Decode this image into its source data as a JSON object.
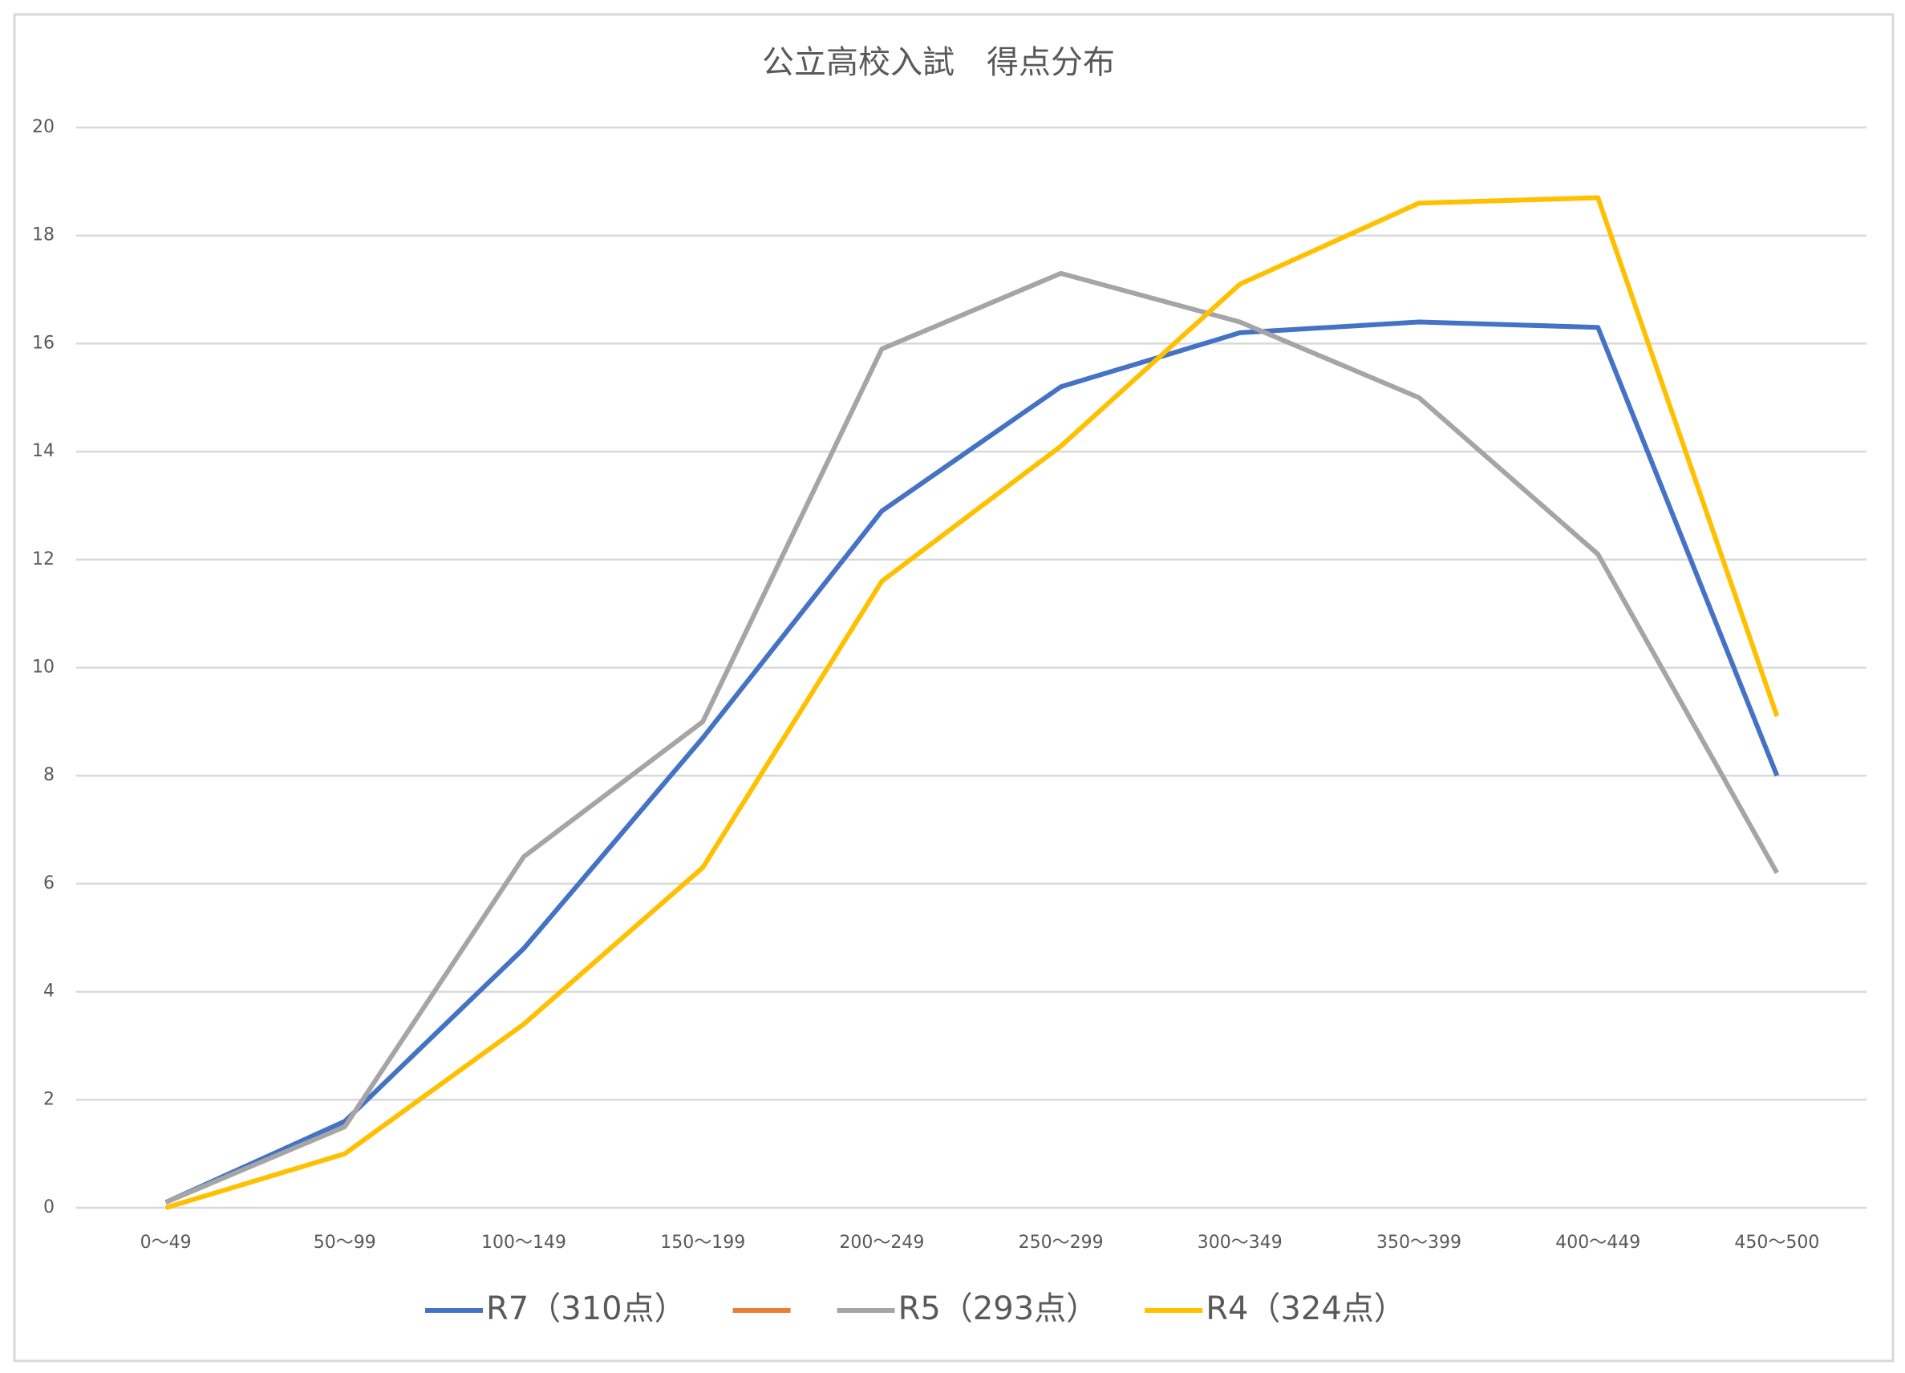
{
  "chart_data": {
    "type": "line",
    "title": "公立高校入試　得点分布",
    "categories": [
      "0〜49",
      "50〜99",
      "100〜149",
      "150〜199",
      "200〜249",
      "250〜299",
      "300〜349",
      "350〜399",
      "400〜449",
      "450〜500"
    ],
    "series": [
      {
        "name": "R7（310点）",
        "color": "#4472c4",
        "values": [
          0.1,
          1.6,
          4.8,
          8.7,
          12.9,
          15.2,
          16.2,
          16.4,
          16.3,
          8.0
        ]
      },
      {
        "color": "#ed7d31",
        "values": [
          null,
          null,
          null,
          null,
          null,
          null,
          null,
          null,
          null,
          null
        ]
      },
      {
        "name": "R5（293点）",
        "color": "#a5a5a5",
        "values": [
          0.1,
          1.5,
          6.5,
          9.0,
          15.9,
          17.3,
          16.4,
          15.0,
          12.1,
          6.2
        ]
      },
      {
        "name": "R4（324点）",
        "color": "#ffc000",
        "values": [
          0.0,
          1.0,
          3.4,
          6.3,
          11.6,
          14.1,
          17.1,
          18.6,
          18.7,
          9.1
        ]
      }
    ],
    "ylim": [
      0,
      20
    ],
    "yticks": [
      0,
      2,
      4,
      6,
      8,
      10,
      12,
      14,
      16,
      18,
      20
    ],
    "grid": true,
    "legend": "bottom"
  }
}
